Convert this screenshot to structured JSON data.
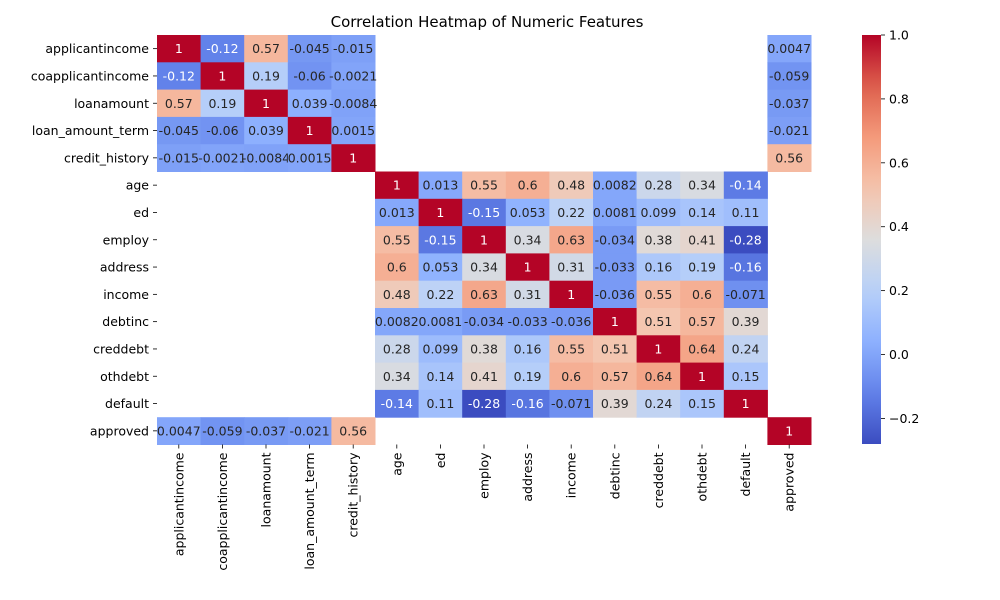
{
  "chart_data": {
    "type": "heatmap",
    "title": "Correlation Heatmap of Numeric Features",
    "colormap": "coolwarm",
    "vmin": -0.28,
    "vmax": 1.0,
    "labels": [
      "applicantincome",
      "coapplicantincome",
      "loanamount",
      "loan_amount_term",
      "credit_history",
      "age",
      "ed",
      "employ",
      "address",
      "income",
      "debtinc",
      "creddebt",
      "othdebt",
      "default",
      "approved"
    ],
    "values": [
      [
        1,
        -0.12,
        0.57,
        -0.045,
        -0.015,
        null,
        null,
        null,
        null,
        null,
        null,
        null,
        null,
        null,
        0.0047
      ],
      [
        -0.12,
        1,
        0.19,
        -0.06,
        -0.0021,
        null,
        null,
        null,
        null,
        null,
        null,
        null,
        null,
        null,
        -0.059
      ],
      [
        0.57,
        0.19,
        1,
        0.039,
        -0.0084,
        null,
        null,
        null,
        null,
        null,
        null,
        null,
        null,
        null,
        -0.037
      ],
      [
        -0.045,
        -0.06,
        0.039,
        1,
        0.0015,
        null,
        null,
        null,
        null,
        null,
        null,
        null,
        null,
        null,
        -0.021
      ],
      [
        -0.015,
        -0.0021,
        -0.0084,
        0.0015,
        1,
        null,
        null,
        null,
        null,
        null,
        null,
        null,
        null,
        null,
        0.56
      ],
      [
        null,
        null,
        null,
        null,
        null,
        1,
        0.013,
        0.55,
        0.6,
        0.48,
        0.0082,
        0.28,
        0.34,
        -0.14,
        null
      ],
      [
        null,
        null,
        null,
        null,
        null,
        0.013,
        1,
        -0.15,
        0.053,
        0.22,
        0.0081,
        0.099,
        0.14,
        0.11,
        null
      ],
      [
        null,
        null,
        null,
        null,
        null,
        0.55,
        -0.15,
        1,
        0.34,
        0.63,
        -0.034,
        0.38,
        0.41,
        -0.28,
        null
      ],
      [
        null,
        null,
        null,
        null,
        null,
        0.6,
        0.053,
        0.34,
        1,
        0.31,
        -0.033,
        0.16,
        0.19,
        -0.16,
        null
      ],
      [
        null,
        null,
        null,
        null,
        null,
        0.48,
        0.22,
        0.63,
        0.31,
        1,
        -0.036,
        0.55,
        0.6,
        -0.071,
        null
      ],
      [
        null,
        null,
        null,
        null,
        null,
        0.0082,
        0.0081,
        -0.034,
        -0.033,
        -0.036,
        1,
        0.51,
        0.57,
        0.39,
        null
      ],
      [
        null,
        null,
        null,
        null,
        null,
        0.28,
        0.099,
        0.38,
        0.16,
        0.55,
        0.51,
        1,
        0.64,
        0.24,
        null
      ],
      [
        null,
        null,
        null,
        null,
        null,
        0.34,
        0.14,
        0.41,
        0.19,
        0.6,
        0.57,
        0.64,
        1,
        0.15,
        null
      ],
      [
        null,
        null,
        null,
        null,
        null,
        -0.14,
        0.11,
        -0.28,
        -0.16,
        -0.071,
        0.39,
        0.24,
        0.15,
        1,
        null
      ],
      [
        0.0047,
        -0.059,
        -0.037,
        -0.021,
        0.56,
        null,
        null,
        null,
        null,
        null,
        null,
        null,
        null,
        null,
        1
      ]
    ],
    "colorbar_ticks": [
      1.0,
      0.8,
      0.6,
      0.4,
      0.2,
      0.0,
      -0.2
    ],
    "colorbar_tick_labels": [
      "1.0",
      "0.8",
      "0.6",
      "0.4",
      "0.2",
      "0.0",
      "−0.2"
    ]
  }
}
